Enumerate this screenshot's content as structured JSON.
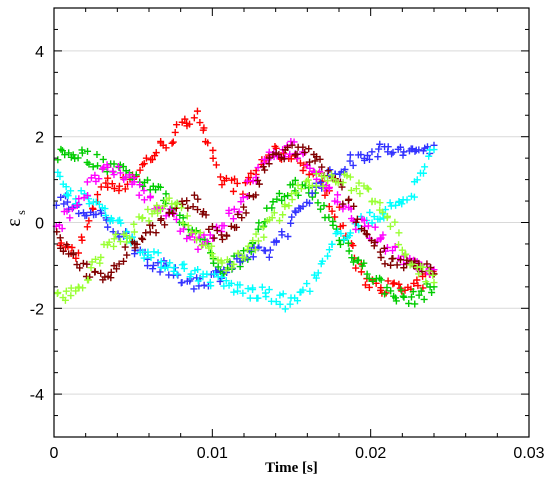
{
  "chart_data": {
    "type": "scatter",
    "title": "",
    "xlabel": "Time [s]",
    "ylabel": "ε",
    "ylabel_subscript": "s",
    "xlim": [
      0,
      0.03
    ],
    "ylim": [
      -5,
      5
    ],
    "xticks": [
      0,
      0.01,
      0.02,
      0.03
    ],
    "xtick_labels": [
      "0",
      "0.01",
      "0.02",
      "0.03"
    ],
    "yticks": [
      -4,
      -2,
      0,
      2,
      4
    ],
    "ytick_labels": [
      "-4",
      "-2",
      "0",
      "2",
      "4"
    ],
    "grid": true,
    "marker": "+",
    "series": [
      {
        "color": "#ff0000",
        "x": [
          0.0,
          0.0015,
          0.003,
          0.0045,
          0.006,
          0.0075,
          0.009,
          0.0105,
          0.012,
          0.0135,
          0.015,
          0.0165,
          0.018,
          0.0195,
          0.021,
          0.0225,
          0.024
        ],
        "y": [
          -0.5,
          -0.7,
          0.9,
          0.9,
          1.5,
          2.0,
          2.6,
          1.0,
          0.8,
          1.6,
          1.6,
          1.1,
          0.2,
          -1.3,
          -1.5,
          -1.6,
          -1.2
        ]
      },
      {
        "color": "#00cc00",
        "x": [
          0.0,
          0.0015,
          0.003,
          0.0045,
          0.006,
          0.0075,
          0.009,
          0.0105,
          0.012,
          0.0135,
          0.015,
          0.0165,
          0.018,
          0.0195,
          0.021,
          0.0225,
          0.024
        ],
        "y": [
          1.6,
          1.6,
          1.4,
          1.2,
          0.9,
          0.4,
          -0.3,
          -1.1,
          -0.8,
          0.2,
          0.9,
          0.6,
          -0.3,
          -1.0,
          -1.6,
          -1.8,
          -1.5
        ]
      },
      {
        "color": "#3333ff",
        "x": [
          0.0,
          0.0015,
          0.003,
          0.0045,
          0.006,
          0.0075,
          0.009,
          0.0105,
          0.012,
          0.0135,
          0.015,
          0.0165,
          0.018,
          0.0195,
          0.021,
          0.0225,
          0.024
        ],
        "y": [
          0.6,
          0.3,
          0.1,
          -0.3,
          -0.9,
          -1.2,
          -1.4,
          -1.2,
          -0.8,
          -0.7,
          0.0,
          0.8,
          1.2,
          1.6,
          1.7,
          1.6,
          1.8
        ]
      },
      {
        "color": "#00ffff",
        "x": [
          0.0,
          0.0015,
          0.003,
          0.0045,
          0.006,
          0.0075,
          0.009,
          0.0105,
          0.012,
          0.0135,
          0.015,
          0.0165,
          0.018,
          0.0195,
          0.021,
          0.0225,
          0.024
        ],
        "y": [
          1.1,
          0.6,
          0.4,
          -0.2,
          -0.8,
          -1.0,
          -1.2,
          -1.4,
          -1.6,
          -1.7,
          -1.9,
          -1.3,
          -0.3,
          0.0,
          0.3,
          0.6,
          1.7
        ]
      },
      {
        "color": "#ff00ff",
        "x": [
          0.0,
          0.0015,
          0.003,
          0.0045,
          0.006,
          0.0075,
          0.009,
          0.0105,
          0.012,
          0.0135,
          0.015,
          0.0165,
          0.018,
          0.0195,
          0.021,
          0.0225,
          0.024
        ],
        "y": [
          -0.2,
          0.5,
          1.2,
          1.1,
          0.6,
          0.1,
          -0.5,
          -0.2,
          0.6,
          1.5,
          1.8,
          1.2,
          0.4,
          -0.1,
          -0.5,
          -0.9,
          -1.1
        ]
      },
      {
        "color": "#800000",
        "x": [
          0.0,
          0.0015,
          0.003,
          0.0045,
          0.006,
          0.0075,
          0.009,
          0.0105,
          0.012,
          0.0135,
          0.015,
          0.0165,
          0.018,
          0.0195,
          0.021,
          0.0225,
          0.024
        ],
        "y": [
          -0.3,
          -0.9,
          -1.4,
          -0.7,
          -0.2,
          0.2,
          0.5,
          -0.4,
          0.2,
          1.4,
          1.7,
          1.5,
          0.8,
          -0.2,
          -0.8,
          -1.0,
          -1.2
        ]
      },
      {
        "color": "#99ff33",
        "x": [
          0.0,
          0.0015,
          0.003,
          0.0045,
          0.006,
          0.0075,
          0.009,
          0.0105,
          0.012,
          0.0135,
          0.015,
          0.0165,
          0.018,
          0.0195,
          0.021,
          0.0225,
          0.024
        ],
        "y": [
          -1.8,
          -1.6,
          -0.7,
          -0.3,
          0.2,
          0.5,
          -0.3,
          -1.0,
          -0.8,
          -0.1,
          0.6,
          1.0,
          1.0,
          0.8,
          0.3,
          -0.9,
          -1.4
        ]
      }
    ]
  }
}
